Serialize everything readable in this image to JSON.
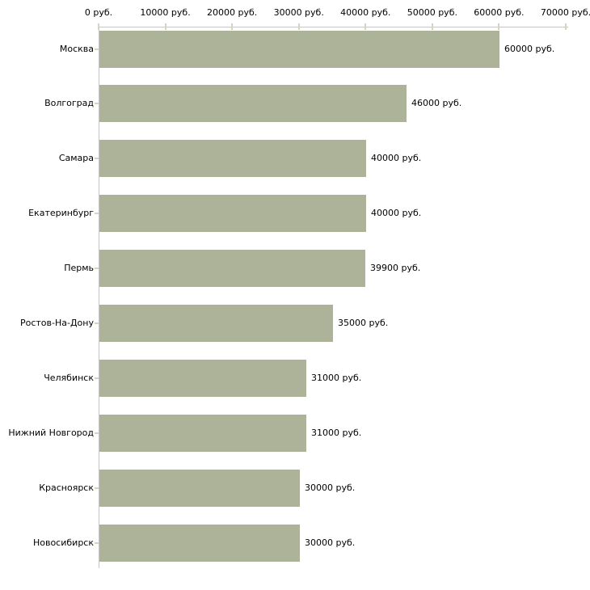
{
  "chart_data": {
    "type": "bar",
    "orientation": "horizontal",
    "title": "",
    "xlabel": "",
    "ylabel": "",
    "unit": "руб.",
    "categories": [
      "Москва",
      "Волгоград",
      "Самара",
      "Екатеринбург",
      "Пермь",
      "Ростов-На-Дону",
      "Челябинск",
      "Нижний Новгород",
      "Красноярск",
      "Новосибирск"
    ],
    "values": [
      60000,
      46000,
      40000,
      40000,
      39900,
      35000,
      31000,
      31000,
      30000,
      30000
    ],
    "value_labels": [
      "60000 руб.",
      "46000 руб.",
      "40000 руб.",
      "40000 руб.",
      "39900 руб.",
      "35000 руб.",
      "31000 руб.",
      "31000 руб.",
      "30000 руб.",
      "30000 руб."
    ],
    "x_ticks": [
      0,
      10000,
      20000,
      30000,
      40000,
      50000,
      60000,
      70000
    ],
    "x_tick_labels": [
      "0 руб.",
      "10000 руб.",
      "20000 руб.",
      "30000 руб.",
      "40000 руб.",
      "50000 руб.",
      "60000 руб.",
      "70000 руб."
    ],
    "xlim": [
      0,
      70000
    ],
    "grid": false,
    "legend": "none",
    "colors": {
      "bar": "#adb399",
      "axis_line": "#c6c6c6",
      "tick_mark": "#d8d4bc",
      "text": "#000000",
      "background": "#ffffff"
    }
  }
}
